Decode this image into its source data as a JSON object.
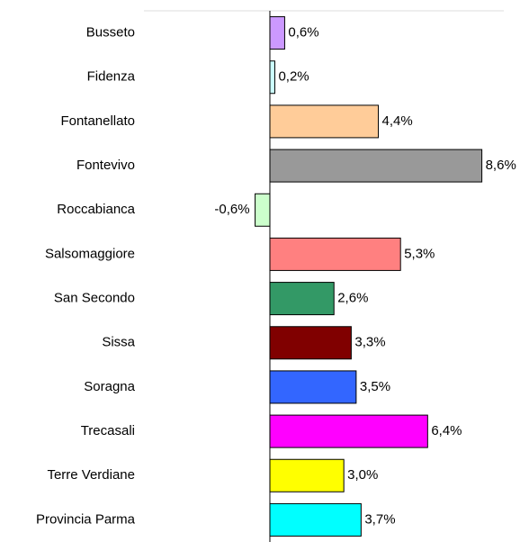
{
  "chart_data": {
    "type": "bar",
    "orientation": "horizontal",
    "categories": [
      "Busseto",
      "Fidenza",
      "Fontanellato",
      "Fontevivo",
      "Roccabianca",
      "Salsomaggiore",
      "San Secondo",
      "Sissa",
      "Soragna",
      "Trecasali",
      "Terre Verdiane",
      "Provincia Parma"
    ],
    "values": [
      0.6,
      0.2,
      4.4,
      8.6,
      -0.6,
      5.3,
      2.6,
      3.3,
      3.5,
      6.4,
      3.0,
      3.7
    ],
    "value_labels": [
      "0,6%",
      "0,2%",
      "4,4%",
      "8,6%",
      "-0,6%",
      "5,3%",
      "2,6%",
      "3,3%",
      "3,5%",
      "6,4%",
      "3,0%",
      "3,7%"
    ],
    "colors": [
      "#cc99ff",
      "#ccffff",
      "#ffcc99",
      "#999999",
      "#ccffcc",
      "#ff8080",
      "#339966",
      "#800000",
      "#3366ff",
      "#ff00ff",
      "#ffff00",
      "#00ffff"
    ],
    "xlim": [
      -5,
      9.6
    ]
  }
}
